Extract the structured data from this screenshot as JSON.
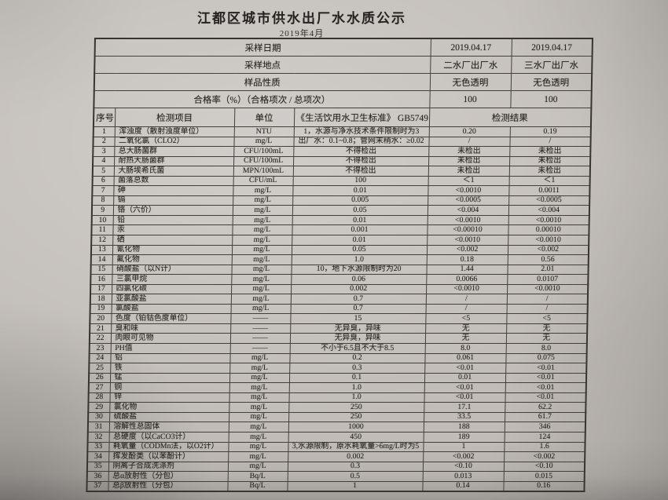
{
  "title": "江都区城市供水出厂水水质公示",
  "subtitle": "2019年4月",
  "info_rows": [
    {
      "label": "采样日期",
      "values": [
        "2019.04.17",
        "2019.04.17"
      ]
    },
    {
      "label": "采样地点",
      "values": [
        "二水厂出厂水",
        "三水厂出厂水"
      ]
    },
    {
      "label": "样品性质",
      "values": [
        "无色透明",
        "无色透明"
      ]
    },
    {
      "label": "合格率（%）（合格项次 / 总项次）",
      "values": [
        "100",
        "100"
      ]
    }
  ],
  "columns": [
    "序号",
    "检测项目",
    "单位",
    "《生活饮用水卫生标准》 GB5749",
    "检测结果"
  ],
  "rows": [
    [
      "1",
      "浑浊度（散射浊度单位）",
      "NTU",
      "1，水源与净水技术条件限制时为3",
      "0.20",
      "0.19"
    ],
    [
      "2",
      "二氧化氯（CLO2）",
      "mg/L",
      "出厂水：0.1~0.8；管网末稍水：≥0.02",
      "/",
      "/"
    ],
    [
      "3",
      "总大肠菌群",
      "CFU/100mL",
      "不得检出",
      "未检出",
      "未检出"
    ],
    [
      "4",
      "耐热大肠菌群",
      "CFU/100mL",
      "不得检出",
      "未检出",
      "未检出"
    ],
    [
      "5",
      "大肠埃希氏菌",
      "MPN/100mL",
      "不得检出",
      "未检出",
      "未检出"
    ],
    [
      "6",
      "菌落总数",
      "CFU/mL",
      "100",
      "＜1",
      "＜1"
    ],
    [
      "7",
      "砷",
      "mg/L",
      "0.01",
      "<0.0010",
      "0.0011"
    ],
    [
      "8",
      "镉",
      "mg/L",
      "0.005",
      "<0.0005",
      "<0.0005"
    ],
    [
      "9",
      "铬（六价）",
      "mg/L",
      "0.05",
      "<0.004",
      "<0.004"
    ],
    [
      "10",
      "铅",
      "mg/L",
      "0.01",
      "<0.0010",
      "<0.0010"
    ],
    [
      "11",
      "汞",
      "mg/L",
      "0.001",
      "<0.00010",
      "0.00010"
    ],
    [
      "12",
      "硒",
      "mg/L",
      "0.01",
      "<0.0010",
      "<0.0010"
    ],
    [
      "13",
      "氰化物",
      "mg/L",
      "0.05",
      "<0.002",
      "<0.002"
    ],
    [
      "14",
      "氟化物",
      "mg/L",
      "1.0",
      "0.18",
      "0.56"
    ],
    [
      "15",
      "硝酸盐（以N计）",
      "mg/L",
      "10，地下水源限制时为20",
      "1.44",
      "2.01"
    ],
    [
      "16",
      "三氯甲烷",
      "mg/L",
      "0.06",
      "0.0066",
      "0.0107"
    ],
    [
      "17",
      "四氯化碳",
      "mg/L",
      "0.002",
      "<0.0010",
      "<0.0010"
    ],
    [
      "18",
      "亚氯酸盐",
      "mg/L",
      "0.7",
      "/",
      "/"
    ],
    [
      "19",
      "氯酸盐",
      "mg/L",
      "0.7",
      "/",
      "/"
    ],
    [
      "20",
      "色度（铂钴色度单位）",
      "——",
      "15",
      "<5",
      "<5"
    ],
    [
      "21",
      "臭和味",
      "——",
      "无异臭，异味",
      "无",
      "无"
    ],
    [
      "22",
      "肉眼可见物",
      "——",
      "无异臭，异味",
      "无",
      "无"
    ],
    [
      "23",
      "PH值",
      "——",
      "不小于6.5且不大于8.5",
      "8.0",
      "8.0"
    ],
    [
      "24",
      "铝",
      "mg/L",
      "0.2",
      "0.061",
      "0.075"
    ],
    [
      "25",
      "铁",
      "mg/L",
      "0.3",
      "<0.01",
      "<0.01"
    ],
    [
      "26",
      "锰",
      "mg/L",
      "0.1",
      "0.01",
      "<0.01"
    ],
    [
      "27",
      "铜",
      "mg/L",
      "1.0",
      "<0.01",
      "<0.01"
    ],
    [
      "28",
      "锌",
      "mg/L",
      "1.0",
      "<0.01",
      "<0.01"
    ],
    [
      "29",
      "氯化物",
      "mg/L",
      "250",
      "17.1",
      "62.2"
    ],
    [
      "30",
      "硫酸盐",
      "mg/L",
      "250",
      "33.5",
      "61.7"
    ],
    [
      "31",
      "溶解性总固体",
      "mg/L",
      "1000",
      "188",
      "346"
    ],
    [
      "32",
      "总硬度（以CaCO3计）",
      "mg/L",
      "450",
      "189",
      "124"
    ],
    [
      "33",
      "耗氧量（CODMn法，以O2计）",
      "mg/L",
      "3,水源限制，原水耗氧量>6mg/L时为5",
      "1",
      "1.6"
    ],
    [
      "34",
      "挥发酚类（以苯酚计）",
      "mg/L",
      "0.002",
      "<0.002",
      "<0.002"
    ],
    [
      "35",
      "阴离子合成洗涤剂",
      "mg/L",
      "0.3",
      "<0.10",
      "<0.10"
    ],
    [
      "36",
      "总α放射性（分包）",
      "Bq/L",
      "0.5",
      "0.013",
      "0.015"
    ],
    [
      "37",
      "总β放射性（分包）",
      "Bq/L",
      "1",
      "0.14",
      "0.16"
    ]
  ]
}
